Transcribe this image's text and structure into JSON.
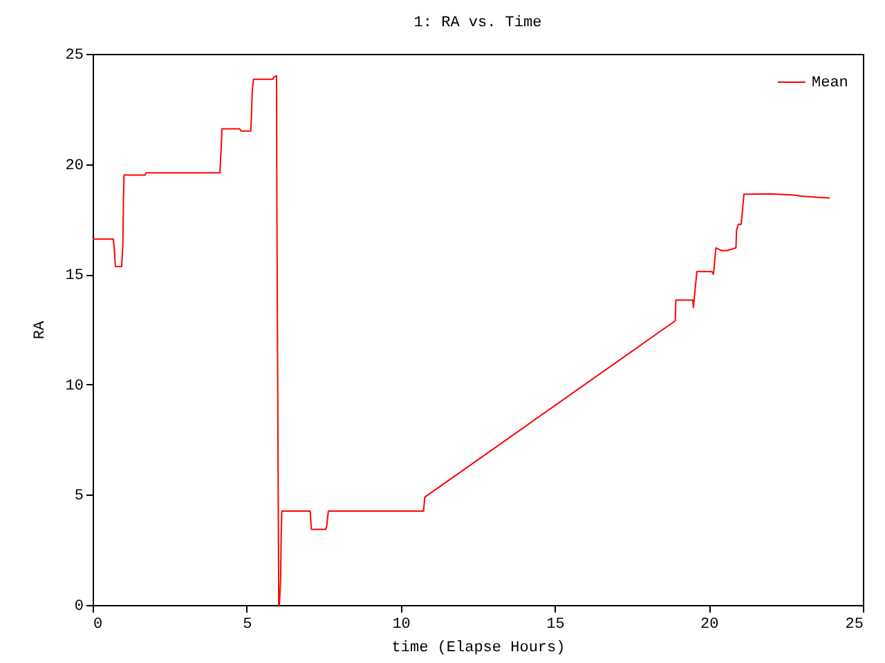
{
  "chart_data": {
    "type": "line",
    "title": "1: RA vs. Time",
    "xlabel": "time (Elapse Hours)",
    "ylabel": "RA",
    "xlim": [
      0,
      25
    ],
    "ylim": [
      0,
      25
    ],
    "xticks": [
      0,
      5,
      10,
      15,
      20,
      25
    ],
    "yticks": [
      0,
      5,
      10,
      15,
      20,
      25
    ],
    "grid": false,
    "legend": "top right",
    "marker": "none",
    "line_style": "solid",
    "series": [
      {
        "name": "Mean",
        "color": "#ff0000",
        "x": [
          0,
          0.67,
          0.7,
          0.74,
          0.94,
          0.98,
          1.0,
          1.02,
          1.7,
          1.74,
          4.13,
          4.15,
          4.2,
          4.77,
          4.82,
          5.13,
          5.15,
          5.18,
          5.22,
          5.85,
          5.88,
          5.97,
          5.98,
          6.02,
          6.04,
          6.06,
          6.1,
          6.12,
          6.14,
          7.06,
          7.1,
          7.13,
          7.57,
          7.6,
          7.65,
          10.74,
          10.78,
          18.91,
          18.93,
          19.48,
          19.5,
          19.61,
          20.1,
          20.15,
          20.23,
          20.4,
          20.6,
          20.88,
          20.9,
          20.96,
          21.05,
          21.14,
          22.0,
          22.71,
          23.0,
          23.47,
          23.92
        ],
        "values": [
          16.6,
          16.6,
          16.2,
          15.35,
          15.35,
          16.3,
          18.4,
          19.5,
          19.5,
          19.6,
          19.6,
          20.1,
          21.6,
          21.6,
          21.5,
          21.5,
          22.06,
          23.3,
          23.85,
          23.85,
          23.95,
          24.0,
          18.0,
          6.0,
          0,
          0,
          1.1,
          3.2,
          4.26,
          4.26,
          3.43,
          3.43,
          3.43,
          3.6,
          4.26,
          4.26,
          4.89,
          12.89,
          13.83,
          13.83,
          13.5,
          15.12,
          15.12,
          15.0,
          16.2,
          16.08,
          16.08,
          16.2,
          17.0,
          17.27,
          17.27,
          18.63,
          18.65,
          18.6,
          18.55,
          18.5,
          18.46
        ]
      }
    ]
  }
}
